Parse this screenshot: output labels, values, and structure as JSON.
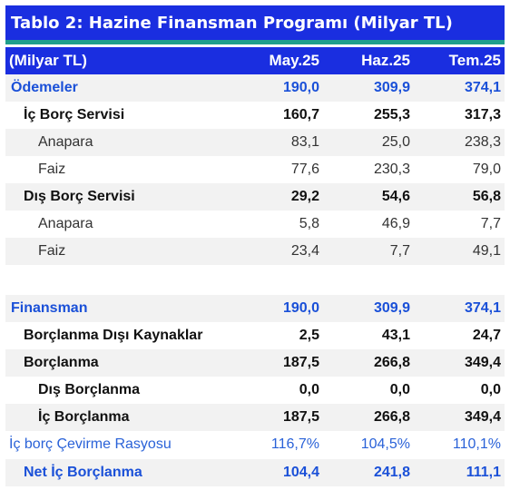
{
  "title": "Tablo 2: Hazine Finansman Programı (Milyar TL)",
  "header": {
    "label": "(Milyar TL)",
    "columns": [
      "May.25",
      "Haz.25",
      "Tem.25"
    ]
  },
  "rows": [
    {
      "label": "Ödemeler",
      "values": [
        "190,0",
        "309,9",
        "374,1"
      ]
    },
    {
      "label": "İç Borç Servisi",
      "values": [
        "160,7",
        "255,3",
        "317,3"
      ]
    },
    {
      "label": "Anapara",
      "values": [
        "83,1",
        "25,0",
        "238,3"
      ]
    },
    {
      "label": "Faiz",
      "values": [
        "77,6",
        "230,3",
        "79,0"
      ]
    },
    {
      "label": "Dış Borç Servisi",
      "values": [
        "29,2",
        "54,6",
        "56,8"
      ]
    },
    {
      "label": "Anapara",
      "values": [
        "5,8",
        "46,9",
        "7,7"
      ]
    },
    {
      "label": "Faiz",
      "values": [
        "23,4",
        "7,7",
        "49,1"
      ]
    },
    {
      "label": "Finansman",
      "values": [
        "190,0",
        "309,9",
        "374,1"
      ]
    },
    {
      "label": "Borçlanma Dışı Kaynaklar",
      "values": [
        "2,5",
        "43,1",
        "24,7"
      ]
    },
    {
      "label": "Borçlanma",
      "values": [
        "187,5",
        "266,8",
        "349,4"
      ]
    },
    {
      "label": "Dış Borçlanma",
      "values": [
        "0,0",
        "0,0",
        "0,0"
      ]
    },
    {
      "label": "İç Borçlanma",
      "values": [
        "187,5",
        "266,8",
        "349,4"
      ]
    },
    {
      "label": "İç borç Çevirme Rasyosu",
      "values": [
        "116,7%",
        "104,5%",
        "110,1%"
      ]
    },
    {
      "label": "Net İç Borçlanma",
      "values": [
        "104,4",
        "241,8",
        "111,1"
      ]
    }
  ],
  "colors": {
    "title_bg": "#1a2ee0",
    "title_rule": "#1f9e8c",
    "accent_text": "#1a50d8",
    "shaded_row": "#f2f2f2"
  }
}
